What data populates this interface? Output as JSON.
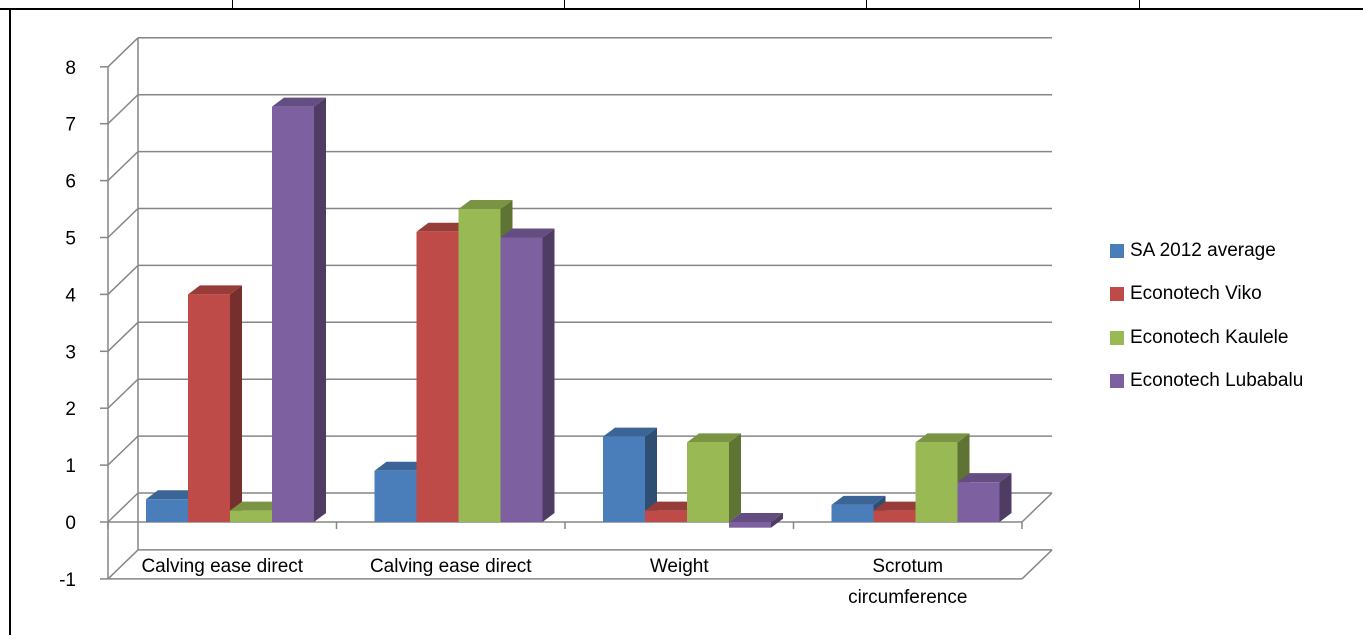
{
  "chart_data": {
    "type": "bar",
    "title": "",
    "xlabel": "",
    "ylabel": "",
    "ylim": [
      -1,
      8
    ],
    "yticks": [
      "-1",
      "0",
      "1",
      "2",
      "3",
      "4",
      "5",
      "6",
      "7",
      "8"
    ],
    "grid": true,
    "style": "3d-clustered-column",
    "legend_position": "right",
    "categories": [
      "Calving ease direct",
      "Calving ease direct",
      "Weight",
      [
        "Scrotum",
        "circumference"
      ]
    ],
    "series": [
      {
        "name": "SA 2012 average",
        "color": "#4a7ebb",
        "values": [
          0.4,
          0.9,
          1.5,
          0.3
        ]
      },
      {
        "name": "Econotech Viko",
        "color": "#be4b48",
        "values": [
          4.0,
          5.1,
          0.2,
          0.2
        ]
      },
      {
        "name": "Econotech Kaulele",
        "color": "#98b954",
        "values": [
          0.2,
          5.5,
          1.4,
          1.4
        ]
      },
      {
        "name": "Econotech Lubabalu",
        "color": "#7d60a0",
        "values": [
          7.3,
          5.0,
          -0.1,
          0.7
        ]
      }
    ]
  },
  "colors": {
    "gridline": "#868686",
    "axis": "#868686",
    "frame": "#000000"
  }
}
